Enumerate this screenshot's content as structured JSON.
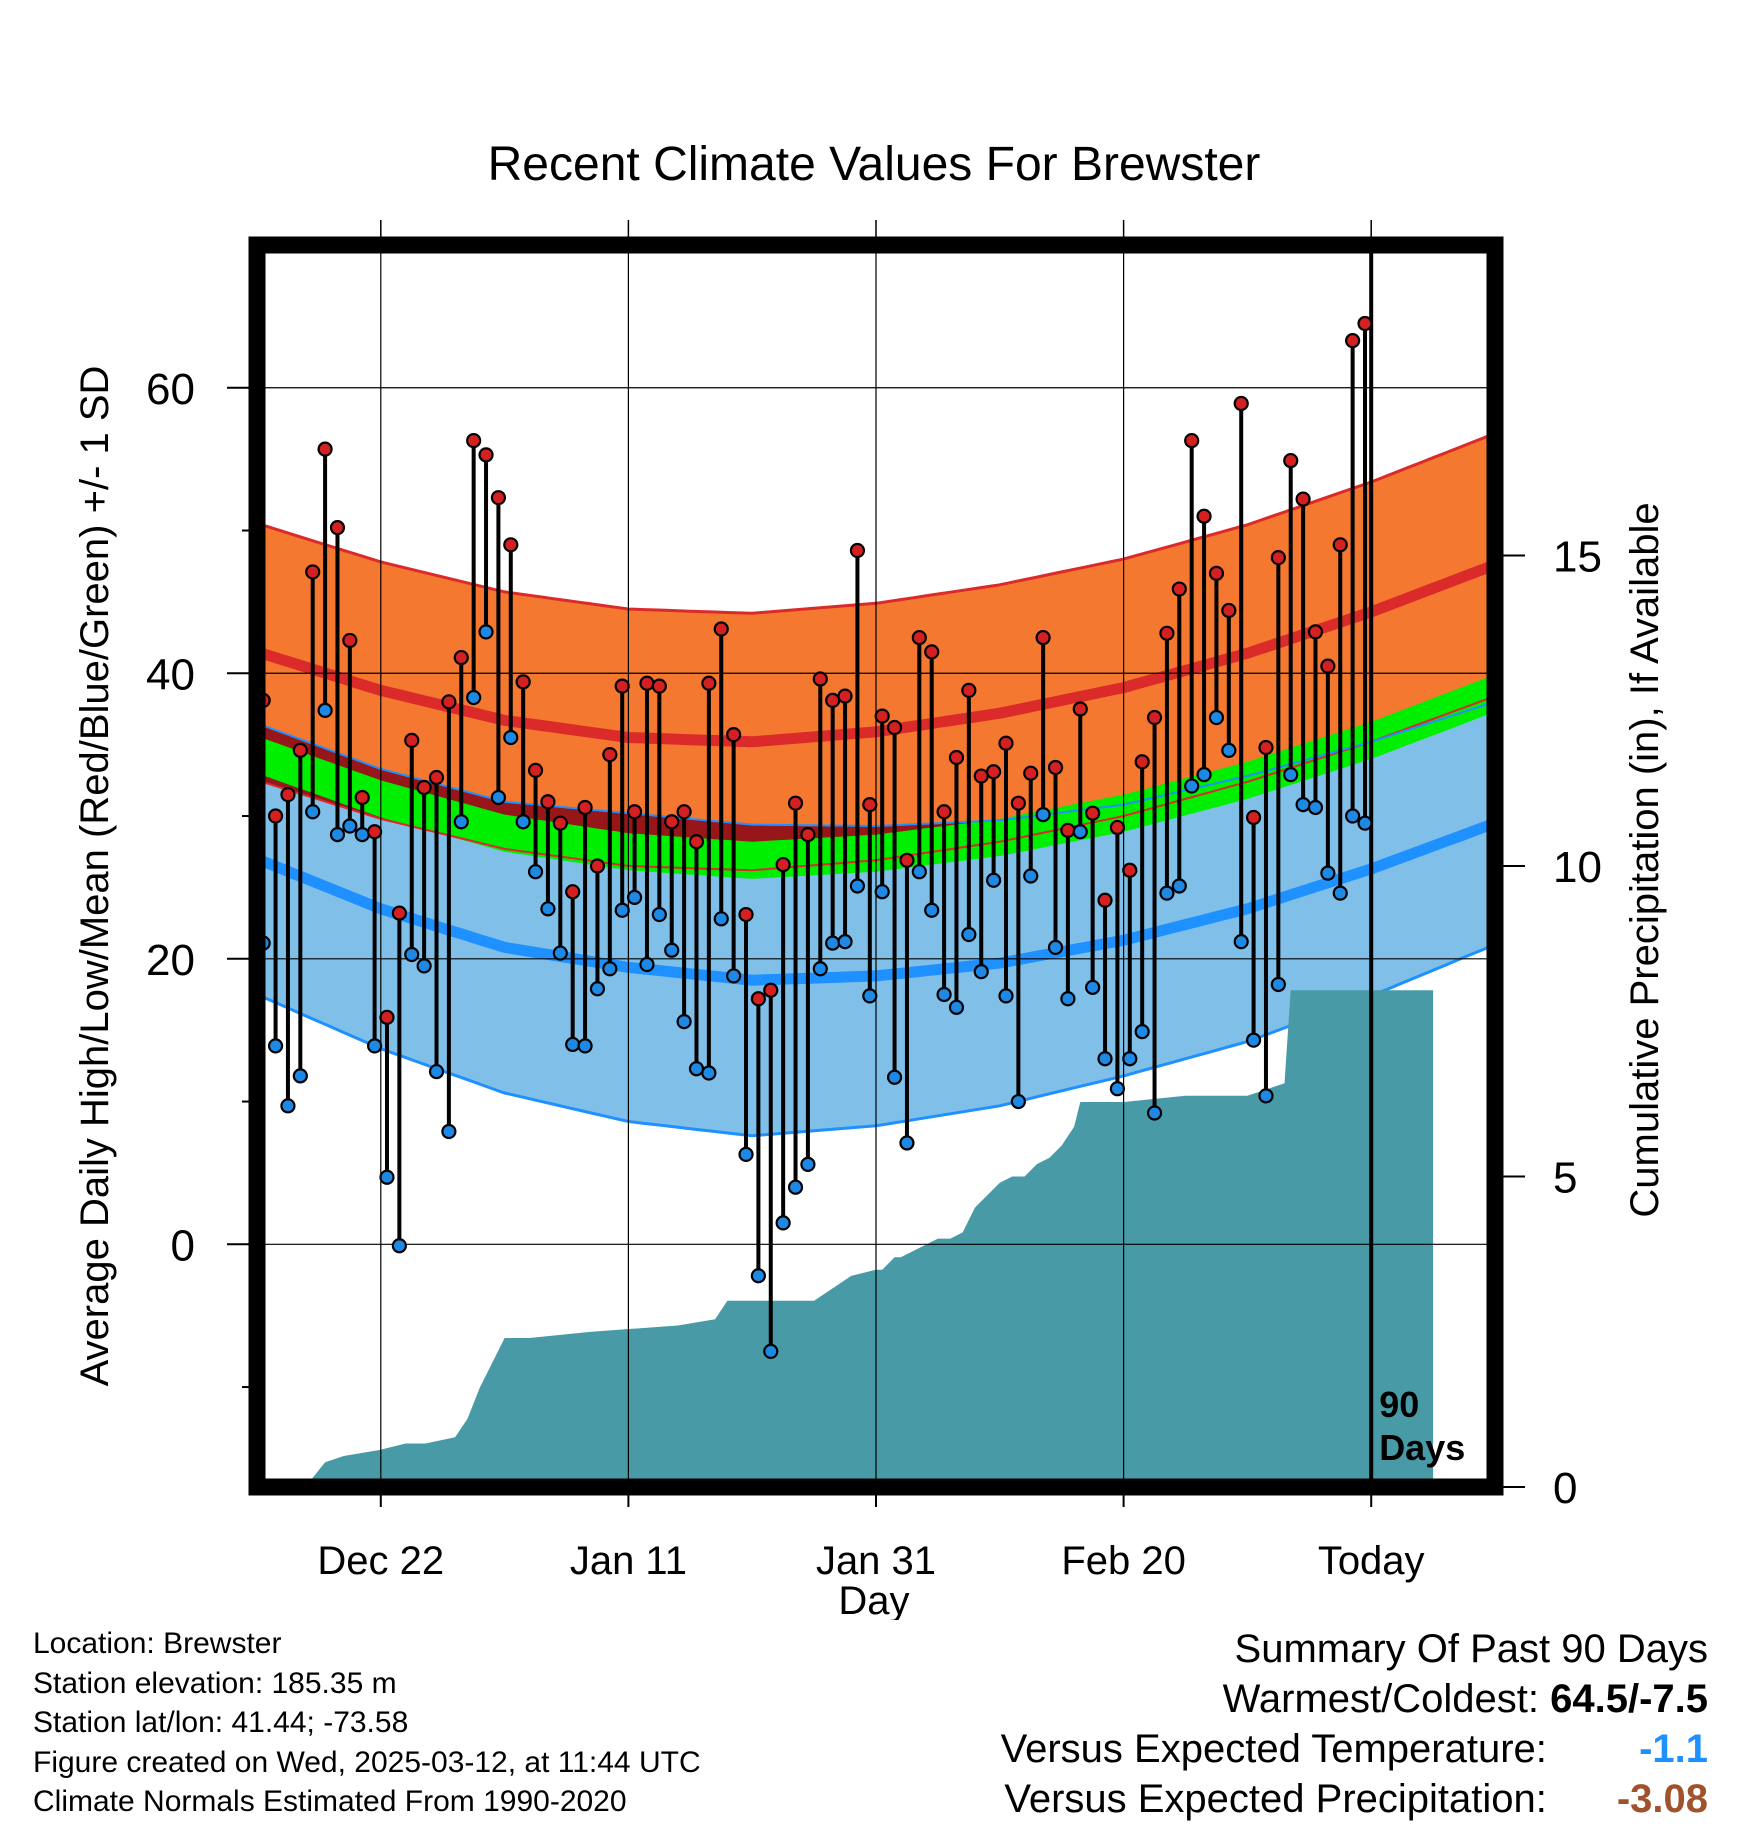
{
  "chart_data": {
    "type": "line",
    "title": "Recent Climate Values For Brewster",
    "xlabel": "Day",
    "ylabel": "Average Daily High/Low/Mean (Red/Blue/Green) +/- 1 SD",
    "y2label": "Cumulative Precipitation (in), If Available",
    "ylim": [
      -17,
      70
    ],
    "y_ticks": [
      "0",
      "20",
      "40",
      "60"
    ],
    "y2lim": [
      0,
      20
    ],
    "y2_ticks": [
      "0",
      "5",
      "10",
      "15"
    ],
    "xlim": [
      0,
      100
    ],
    "x_ticks": [
      {
        "day": 10,
        "label": "Dec 22"
      },
      {
        "day": 30,
        "label": "Jan 11"
      },
      {
        "day": 50,
        "label": "Jan 31"
      },
      {
        "day": 70,
        "label": "Feb 20"
      },
      {
        "day": 90,
        "label": "Today"
      }
    ],
    "today_marker": {
      "day": 90,
      "label_line1": "90",
      "label_line2": "Days"
    },
    "grid": true,
    "colors": {
      "high_band": "#f47830",
      "high_line": "#da2a2a",
      "mean_band": "#00ee00",
      "mean_overlap_band": "#96161a",
      "low_band": "#80c0e8",
      "low_line": "#1e90ff",
      "high_dot": "#d42020",
      "low_dot": "#1e88e5",
      "precip_fill": "#489ba6"
    },
    "normals": {
      "days": [
        0,
        10,
        20,
        30,
        40,
        50,
        60,
        70,
        80,
        90,
        100
      ],
      "high_mean": [
        41.5,
        38.8,
        36.7,
        35.5,
        35.2,
        35.9,
        37.2,
        39.0,
        41.4,
        44.3,
        47.6
      ],
      "high_sd": [
        9.0,
        9.0,
        9.0,
        9.0,
        9.0,
        9.0,
        9.0,
        9.0,
        9.0,
        9.1,
        9.2
      ],
      "low_mean": [
        27.0,
        23.5,
        20.8,
        19.4,
        18.5,
        18.8,
        19.7,
        21.3,
        23.5,
        26.3,
        29.5
      ],
      "low_sd": [
        9.5,
        9.8,
        10.2,
        10.8,
        10.9,
        10.5,
        10.0,
        9.5,
        9.3,
        8.9,
        8.5
      ],
      "mean_mean": [
        34.3,
        31.2,
        28.8,
        27.5,
        26.9,
        27.4,
        28.5,
        30.2,
        32.5,
        35.3,
        38.6
      ],
      "mean_sd": [
        1.3,
        1.3,
        1.3,
        1.3,
        1.3,
        1.3,
        1.3,
        1.3,
        1.3,
        1.3,
        1.3
      ]
    },
    "series": [
      {
        "name": "High",
        "values": [
          38.1,
          30.0,
          31.5,
          34.6,
          47.1,
          55.7,
          50.2,
          42.3,
          31.3,
          28.9,
          15.9,
          23.2,
          35.3,
          32.0,
          32.7,
          38.0,
          41.1,
          56.3,
          55.3,
          52.3,
          49.0,
          39.4,
          33.2,
          31.0,
          29.5,
          24.7,
          30.6,
          26.5,
          34.3,
          39.1,
          30.3,
          39.3,
          39.1,
          29.6,
          30.3,
          28.2,
          39.3,
          43.1,
          35.7,
          23.1,
          17.2,
          17.8,
          26.6,
          30.9,
          28.7,
          39.6,
          38.1,
          38.4,
          48.6,
          30.8,
          37.0,
          36.2,
          26.9,
          42.5,
          41.5,
          30.3,
          34.1,
          38.8,
          32.8,
          33.1,
          35.1,
          30.9,
          33.0,
          42.5,
          33.4,
          29.0,
          37.5,
          30.2,
          24.1,
          29.2,
          26.2,
          33.8,
          36.9,
          42.8,
          45.9,
          56.3,
          51.0,
          47.0,
          44.4,
          58.9,
          29.9,
          34.8,
          48.1,
          54.9,
          52.2,
          42.9,
          40.5,
          49.0,
          63.3,
          64.5
        ]
      },
      {
        "name": "Low",
        "values": [
          21.1,
          13.9,
          9.7,
          11.8,
          30.3,
          37.4,
          28.7,
          29.3,
          28.7,
          13.9,
          4.7,
          -0.1,
          20.3,
          19.5,
          12.1,
          7.9,
          29.6,
          38.3,
          42.9,
          31.3,
          35.5,
          29.6,
          26.1,
          23.5,
          20.4,
          14.0,
          13.9,
          17.9,
          19.3,
          23.4,
          24.3,
          19.6,
          23.1,
          20.6,
          15.6,
          12.3,
          12.0,
          22.8,
          18.8,
          6.3,
          -2.2,
          -7.5,
          1.5,
          4.0,
          5.6,
          19.3,
          21.1,
          21.2,
          25.1,
          17.4,
          24.7,
          11.7,
          7.1,
          26.1,
          23.4,
          17.5,
          16.6,
          21.7,
          19.1,
          25.5,
          17.4,
          10.0,
          25.8,
          30.1,
          20.8,
          17.2,
          28.9,
          18.0,
          13.0,
          10.9,
          13.0,
          14.9,
          9.2,
          24.6,
          25.1,
          32.1,
          32.9,
          36.9,
          34.6,
          21.2,
          14.3,
          10.4,
          18.2,
          32.9,
          30.8,
          30.6,
          26.0,
          24.6,
          30.0,
          29.5
        ]
      }
    ],
    "precip": {
      "days": [
        3.9,
        5.5,
        7.0,
        10.0,
        12.0,
        13.6,
        16.0,
        17.0,
        18.0,
        20.0,
        22.0,
        27.0,
        34.0,
        37.0,
        38.0,
        40.0,
        45.0,
        48.0,
        50.0,
        50.5,
        51.5,
        52.0,
        55.0,
        56.0,
        57.0,
        58.0,
        59.0,
        60.0,
        61.0,
        62.0,
        63.0,
        64.0,
        65.0,
        66.0,
        66.5,
        68.0,
        70.0,
        75.0,
        80.0,
        83.0,
        83.5,
        88.0,
        95.0
      ],
      "values": [
        0.0,
        0.4,
        0.5,
        0.6,
        0.7,
        0.7,
        0.8,
        1.1,
        1.6,
        2.4,
        2.4,
        2.5,
        2.6,
        2.7,
        3.0,
        3.0,
        3.0,
        3.4,
        3.5,
        3.5,
        3.7,
        3.7,
        4.0,
        4.0,
        4.1,
        4.5,
        4.7,
        4.9,
        5.0,
        5.0,
        5.2,
        5.3,
        5.5,
        5.8,
        6.2,
        6.2,
        6.2,
        6.3,
        6.3,
        6.5,
        8.0,
        8.0,
        8.0
      ]
    }
  },
  "info": {
    "location": "Location: Brewster",
    "elevation": "Station elevation: 185.35 m",
    "latlon": "Station lat/lon: 41.44; -73.58",
    "created": "Figure created on Wed, 2025-03-12, at 11:44 UTC",
    "normals": "Climate Normals Estimated From 1990-2020"
  },
  "summary": {
    "heading": "Summary Of Past 90 Days",
    "warm_cold_label": "Warmest/Coldest:",
    "warm_cold_value": "64.5/-7.5",
    "temp_label": "Versus Expected Temperature:",
    "temp_value": "-1.1",
    "temp_color": "#1e90ff",
    "precip_label": "Versus Expected Precipitation:",
    "precip_value": "-3.08",
    "precip_color": "#a0522d"
  }
}
